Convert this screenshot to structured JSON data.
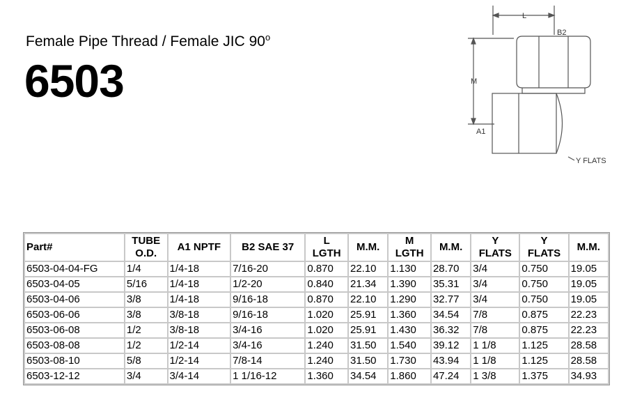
{
  "header": {
    "subtitle": "Female Pipe Thread / Female JIC 90",
    "subtitle_sup": "o",
    "title": "6503"
  },
  "diagram": {
    "labels": {
      "l": "L",
      "b2": "B2",
      "m": "M",
      "a1": "A1",
      "y_flats": "Y FLATS"
    }
  },
  "table": {
    "columns": [
      "Part#",
      "TUBE\nO.D.",
      "A1 NPTF",
      "B2 SAE 37",
      "L\nLGTH",
      "M.M.",
      "M\nLGTH",
      "M.M.",
      "Y\nFLATS",
      "Y\nFLATS",
      "M.M."
    ],
    "rows": [
      [
        "6503-04-04-FG",
        "1/4",
        "1/4-18",
        "7/16-20",
        "0.870",
        "22.10",
        "1.130",
        "28.70",
        "3/4",
        "0.750",
        "19.05"
      ],
      [
        "6503-04-05",
        "5/16",
        "1/4-18",
        "1/2-20",
        "0.840",
        "21.34",
        "1.390",
        "35.31",
        "3/4",
        "0.750",
        "19.05"
      ],
      [
        "6503-04-06",
        "3/8",
        "1/4-18",
        "9/16-18",
        "0.870",
        "22.10",
        "1.290",
        "32.77",
        "3/4",
        "0.750",
        "19.05"
      ],
      [
        "6503-06-06",
        "3/8",
        "3/8-18",
        "9/16-18",
        "1.020",
        "25.91",
        "1.360",
        "34.54",
        "7/8",
        "0.875",
        "22.23"
      ],
      [
        "6503-06-08",
        "1/2",
        "3/8-18",
        "3/4-16",
        "1.020",
        "25.91",
        "1.430",
        "36.32",
        "7/8",
        "0.875",
        "22.23"
      ],
      [
        "6503-08-08",
        "1/2",
        "1/2-14",
        "3/4-16",
        "1.240",
        "31.50",
        "1.540",
        "39.12",
        "1 1/8",
        "1.125",
        "28.58"
      ],
      [
        "6503-08-10",
        "5/8",
        "1/2-14",
        "7/8-14",
        "1.240",
        "31.50",
        "1.730",
        "43.94",
        "1 1/8",
        "1.125",
        "28.58"
      ],
      [
        "6503-12-12",
        "3/4",
        "3/4-14",
        "1 1/16-12",
        "1.360",
        "34.54",
        "1.860",
        "47.24",
        "1 3/8",
        "1.375",
        "34.93"
      ]
    ]
  }
}
